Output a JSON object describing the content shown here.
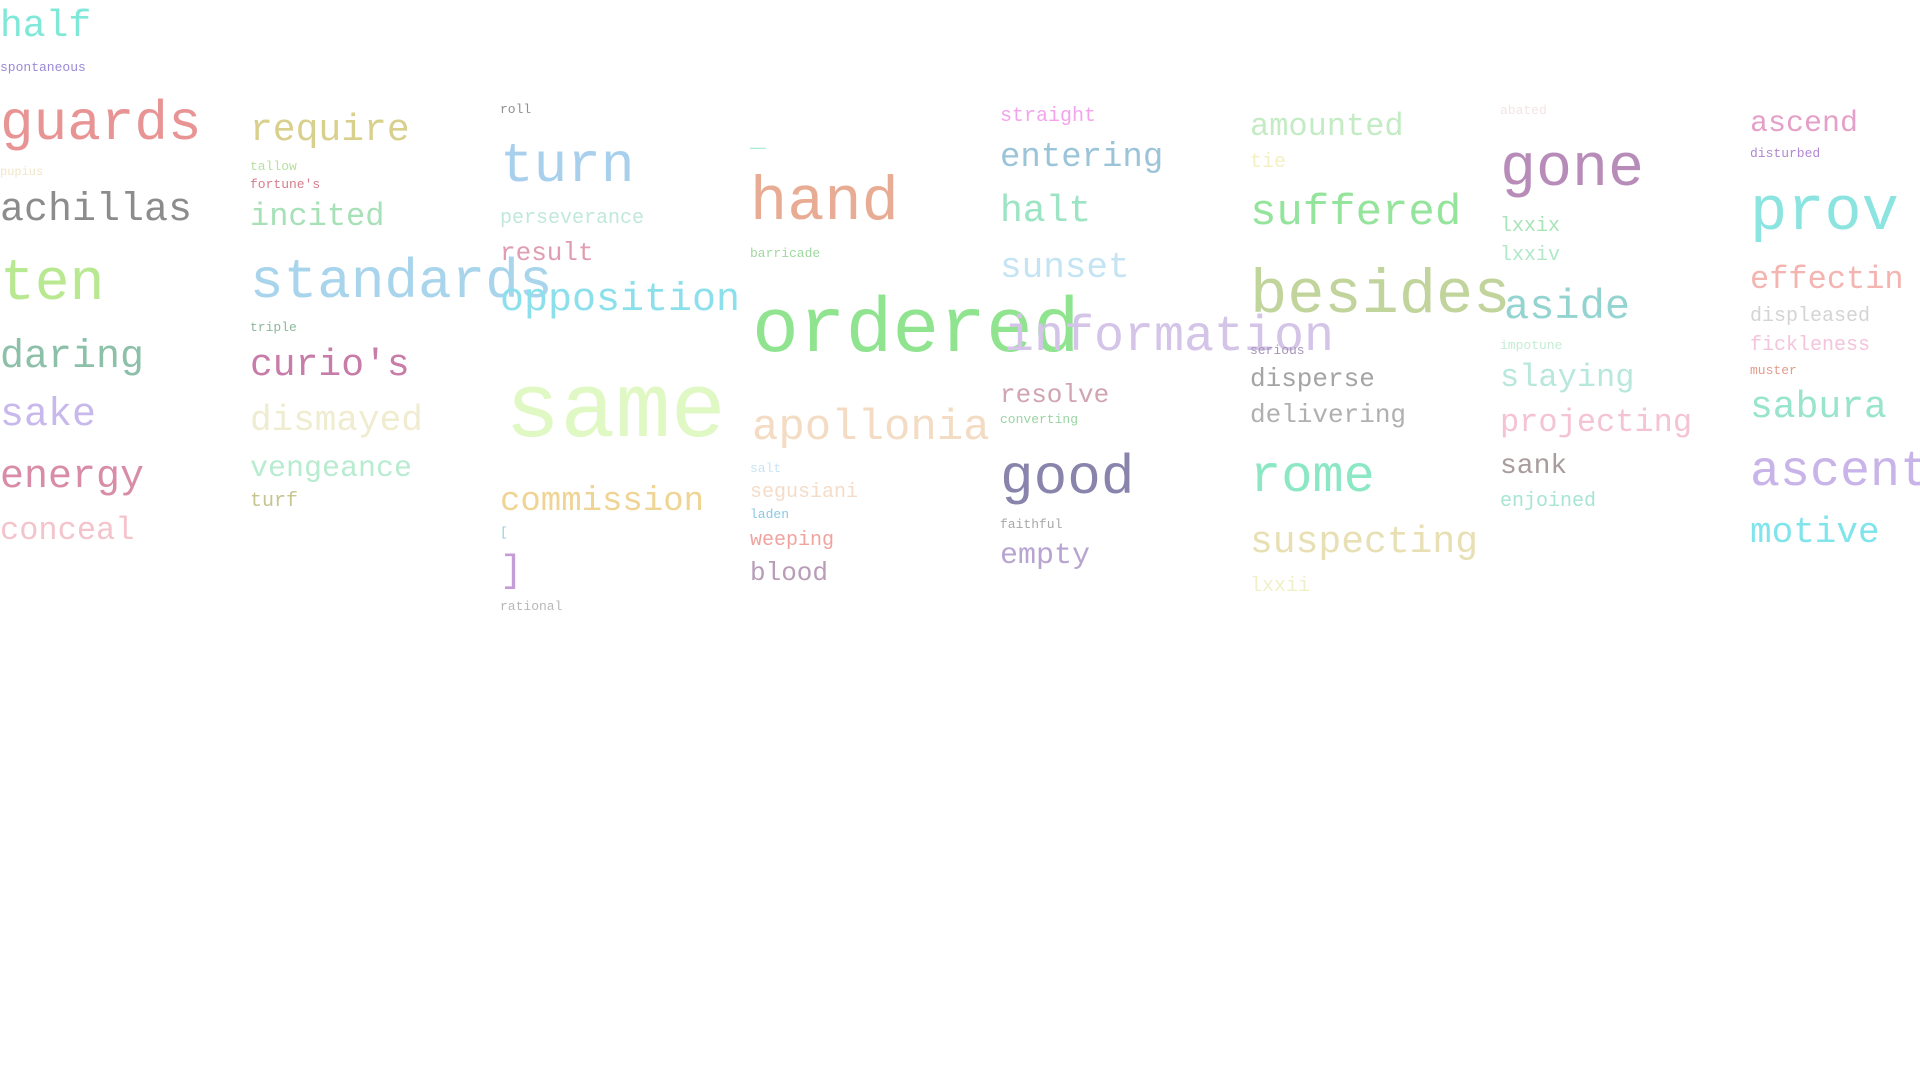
{
  "words": [
    {
      "text": "half",
      "color": "#7fe8d8"
    },
    {
      "text": "spontaneous",
      "color": "#9a8ad6"
    },
    {
      "text": "guards",
      "color": "#e89494"
    },
    {
      "text": "pupius",
      "color": "#f2e6c8"
    },
    {
      "text": "achillas",
      "color": "#8c8c8c"
    },
    {
      "text": "ten",
      "color": "#b8e890"
    },
    {
      "text": "daring",
      "color": "#8cc0a8"
    },
    {
      "text": "sake",
      "color": "#c8b8ec"
    },
    {
      "text": "energy",
      "color": "#d88ca8"
    },
    {
      "text": "conceal",
      "color": "#f4c4cc"
    },
    {
      "text": "require",
      "color": "#d8d08c"
    },
    {
      "text": "tallow",
      "color": "#b8e0a0"
    },
    {
      "text": "fortune's",
      "color": "#d87c8c"
    },
    {
      "text": "incited",
      "color": "#a8e0b8"
    },
    {
      "text": "standards",
      "color": "#a8d4ec"
    },
    {
      "text": "triple",
      "color": "#8cb89c"
    },
    {
      "text": "curio's",
      "color": "#c87ca8"
    },
    {
      "text": "dismayed",
      "color": "#f0ecd0"
    },
    {
      "text": "vengeance",
      "color": "#b8ecd0"
    },
    {
      "text": "turf",
      "color": "#c8c490"
    },
    {
      "text": "roll",
      "color": "#909090"
    },
    {
      "text": "turn",
      "color": "#a8d0ec"
    },
    {
      "text": "perseverance",
      "color": "#c0e8dc"
    },
    {
      "text": "result",
      "color": "#e09cb0"
    },
    {
      "text": "opposition",
      "color": "#8ce0ec"
    },
    {
      "text": "same",
      "color": "#e0f8c4"
    },
    {
      "text": "commission",
      "color": "#f0d494"
    },
    {
      "text": "[",
      "color": "#8cd0d8"
    },
    {
      "text": "]",
      "color": "#c49cd8"
    },
    {
      "text": "rational",
      "color": "#b8b8b8"
    },
    {
      "text": "_",
      "color": "#a8ecd8"
    },
    {
      "text": "hand",
      "color": "#e8ac94"
    },
    {
      "text": "barricade",
      "color": "#a0d8a0"
    },
    {
      "text": "ordered",
      "color": "#90e490"
    },
    {
      "text": "apollonia",
      "color": "#f4dcc4"
    },
    {
      "text": "salt",
      "color": "#c8e4f4"
    },
    {
      "text": "segusiani",
      "color": "#f4dcc8"
    },
    {
      "text": "laden",
      "color": "#8cc8e4"
    },
    {
      "text": "weeping",
      "color": "#f0a4a0"
    },
    {
      "text": "blood",
      "color": "#b89cb8"
    },
    {
      "text": "straight",
      "color": "#f4a4ec"
    },
    {
      "text": "entering",
      "color": "#9cc4d8"
    },
    {
      "text": "halt",
      "color": "#9ce4c4"
    },
    {
      "text": "sunset",
      "color": "#c4e4f4"
    },
    {
      "text": "information",
      "color": "#d4c4e8"
    },
    {
      "text": "resolve",
      "color": "#d0a4b0"
    },
    {
      "text": "converting",
      "color": "#9cd4a4"
    },
    {
      "text": "good",
      "color": "#8884ac"
    },
    {
      "text": "faithful",
      "color": "#a8a8a8"
    },
    {
      "text": "empty",
      "color": "#b8a4d0"
    },
    {
      "text": "amounted",
      "color": "#c4ecc4"
    },
    {
      "text": "tie",
      "color": "#f4f0c4"
    },
    {
      "text": "suffered",
      "color": "#94e49c"
    },
    {
      "text": "besides",
      "color": "#c0d49c"
    },
    {
      "text": "serious",
      "color": "#a894b8"
    },
    {
      "text": "disperse",
      "color": "#a4a4a4"
    },
    {
      "text": "delivering",
      "color": "#b0b0b0"
    },
    {
      "text": "rome",
      "color": "#8ce8c4"
    },
    {
      "text": "suspecting",
      "color": "#e8e0b4"
    },
    {
      "text": "lxxii",
      "color": "#f0f0c8"
    },
    {
      "text": "abated",
      "color": "#f4e4e4"
    },
    {
      "text": "gone",
      "color": "#b88cb8"
    },
    {
      "text": "lxxix",
      "color": "#a8e4b8"
    },
    {
      "text": "lxxiv",
      "color": "#b0e8c8"
    },
    {
      "text": "aside",
      "color": "#94d4d0"
    },
    {
      "text": "impotune",
      "color": "#c4ecd4"
    },
    {
      "text": "slaying",
      "color": "#b8e8dc"
    },
    {
      "text": "projecting",
      "color": "#f4c4d4"
    },
    {
      "text": "sank",
      "color": "#a89c9c"
    },
    {
      "text": "enjoined",
      "color": "#a8e4d4"
    },
    {
      "text": "ascend",
      "color": "#e4a0c8"
    },
    {
      "text": "disturbed",
      "color": "#b088d4"
    },
    {
      "text": "prov",
      "color": "#8ce4e0"
    },
    {
      "text": "effectin",
      "color": "#f4b4b0"
    },
    {
      "text": "displeased",
      "color": "#d4d4d4"
    },
    {
      "text": "fickleness",
      "color": "#f4c4dc"
    },
    {
      "text": "muster",
      "color": "#e49c8c"
    },
    {
      "text": "sabura",
      "color": "#98e4cc"
    },
    {
      "text": "ascent",
      "color": "#c8b4e8"
    },
    {
      "text": "motive",
      "color": "#80e4ec"
    }
  ]
}
